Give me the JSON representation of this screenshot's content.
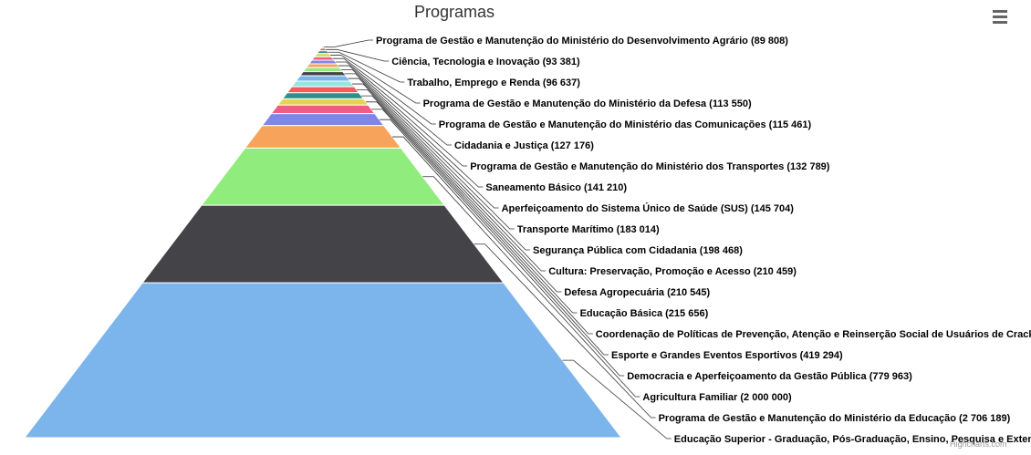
{
  "chart_data": {
    "type": "pyramid",
    "title": "Programas",
    "credit": "Highcharts.com",
    "menu_icon": "hamburger-icon",
    "series": [
      {
        "name": "Educação Superior - Graduação, Pós-Graduação, Ensino, Pesquisa e Extensão",
        "value": 5400000,
        "color": "#7cb5ec"
      },
      {
        "name": "Programa de Gestão e Manutenção do Ministério da Educação",
        "value": 2706189,
        "color": "#434348"
      },
      {
        "name": "Agricultura Familiar",
        "value": 2000000,
        "color": "#90ed7d"
      },
      {
        "name": "Democracia e Aperfeiçoamento da Gestão Pública",
        "value": 779963,
        "color": "#f7a35c"
      },
      {
        "name": "Esporte e Grandes Eventos Esportivos",
        "value": 419294,
        "color": "#8085e9"
      },
      {
        "name": "Coordenação de Políticas de Prevenção, Atenção e Reinserção Social de Usuários de Crack",
        "value": 300000,
        "color": "#f15c80"
      },
      {
        "name": "Educação Básica",
        "value": 215656,
        "color": "#e4d354"
      },
      {
        "name": "Defesa Agropecuária",
        "value": 210545,
        "color": "#2b908f"
      },
      {
        "name": "Cultura: Preservação, Promoção e Acesso",
        "value": 210459,
        "color": "#f45b5b"
      },
      {
        "name": "Segurança Pública com Cidadania",
        "value": 198468,
        "color": "#91e8e1"
      },
      {
        "name": "Transporte Marítimo",
        "value": 183014,
        "color": "#7cb5ec"
      },
      {
        "name": "Aperfeiçoamento do Sistema Único de Saúde (SUS)",
        "value": 145704,
        "color": "#434348"
      },
      {
        "name": "Saneamento Básico",
        "value": 141210,
        "color": "#90ed7d"
      },
      {
        "name": "Programa de Gestão e Manutenção do Ministério dos Transportes",
        "value": 132789,
        "color": "#f7a35c"
      },
      {
        "name": "Cidadania e Justiça",
        "value": 127176,
        "color": "#8085e9"
      },
      {
        "name": "Programa de Gestão e Manutenção do Ministério das Comunicações",
        "value": 115461,
        "color": "#f15c80"
      },
      {
        "name": "Programa de Gestão e Manutenção do Ministério da Defesa",
        "value": 113550,
        "color": "#e4d354"
      },
      {
        "name": "Trabalho, Emprego e Renda",
        "value": 96637,
        "color": "#2b908f"
      },
      {
        "name": "Ciência, Tecnologia e Inovação",
        "value": 93381,
        "color": "#f45b5b"
      },
      {
        "name": "Programa de Gestão e Manutenção do Ministério do Desenvolvimento Agrário",
        "value": 89808,
        "color": "#91e8e1"
      }
    ],
    "labels": [
      "Programa de Gestão e Manutenção do Ministério do Desenvolvimento Agrário (89 808)",
      "Ciência, Tecnologia e Inovação (93 381)",
      "Trabalho, Emprego e Renda (96 637)",
      "Programa de Gestão e Manutenção do Ministério da Defesa (113 550)",
      "Programa de Gestão e Manutenção do Ministério das Comunicações (115 461)",
      "Cidadania e Justiça (127 176)",
      "Programa de Gestão e Manutenção do Ministério dos Transportes (132 789)",
      "Saneamento Básico (141 210)",
      "Aperfeiçoamento do Sistema Único de Saúde (SUS) (145 704)",
      "Transporte Marítimo (183 014)",
      "Segurança Pública com Cidadania (198 468)",
      "Cultura: Preservação, Promoção e Acesso (210 459)",
      "Defesa Agropecuária (210 545)",
      "Educação Básica (215 656)",
      "Coordenação de Políticas de Prevenção, Atenção e Reinserção Social de Usuários de Crack",
      "Esporte e Grandes Eventos Esportivos (419 294)",
      "Democracia e Aperfeiçoamento da Gestão Pública (779 963)",
      "Agricultura Familiar (2 000 000)",
      "Programa de Gestão e Manutenção do Ministério da Educação (2 706 189)",
      "Educação Superior - Graduação, Pós-Graduação, Ensino, Pesquisa e Extensão"
    ]
  }
}
